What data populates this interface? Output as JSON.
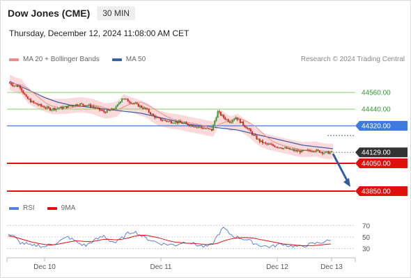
{
  "header": {
    "instrument": "Dow Jones (CME)",
    "interval": "30 MIN",
    "timestamp": "Thursday, December 12, 2024 11:08:00 AM CET"
  },
  "legend": {
    "ma20": "MA 20 + Bollinger Bands",
    "ma50": "MA 50",
    "credit": "Research © 2024 Trading Central"
  },
  "rsi_legend": {
    "rsi": "RSI",
    "ma9": "9MA"
  },
  "colors": {
    "up_candle": "#2e9c3a",
    "down_candle": "#d7221e",
    "bollinger_fill": "#fbd4d6",
    "ma20": "#f08a8a",
    "ma50": "#3b5ea8",
    "resistance": "#8fcf6a",
    "pivot": "#3d7be0",
    "support": "#e01010",
    "current": "#333333",
    "arrow": "#2f5f9e",
    "rsi": "#5a7fd6",
    "rsi_ma": "#e01010"
  },
  "chart_data": [
    {
      "type": "candlestick",
      "title": "Dow Jones (CME)",
      "x_labels": [
        "Dec 10",
        "Dec 11",
        "Dec 12",
        "Dec 13"
      ],
      "ylim": [
        43800,
        44700
      ],
      "levels": [
        {
          "value": 44560.0,
          "label": "44560.00",
          "kind": "resistance"
        },
        {
          "value": 44440.0,
          "label": "44440.00",
          "kind": "resistance"
        },
        {
          "value": 44320.0,
          "label": "44320.00",
          "kind": "pivot"
        },
        {
          "value": 44129.0,
          "label": "44129.00",
          "kind": "current"
        },
        {
          "value": 44050.0,
          "label": "44050.00",
          "kind": "support"
        },
        {
          "value": 43850.0,
          "label": "43850.00",
          "kind": "support"
        }
      ],
      "close_series": [
        44630,
        44610,
        44600,
        44520,
        44490,
        44470,
        44455,
        44440,
        44445,
        44450,
        44460,
        44470,
        44475,
        44470,
        44460,
        44440,
        44420,
        44430,
        44450,
        44520,
        44500,
        44480,
        44460,
        44440,
        44400,
        44370,
        44360,
        44350,
        44350,
        44340,
        44330,
        44320,
        44310,
        44300,
        44290,
        44420,
        44380,
        44350,
        44380,
        44340,
        44300,
        44250,
        44210,
        44190,
        44180,
        44170,
        44160,
        44150,
        44140,
        44135,
        44140,
        44145,
        44135,
        44125,
        44129
      ],
      "ma50_series": [
        44640,
        44620,
        44600,
        44580,
        44560,
        44540,
        44520,
        44505,
        44490,
        44480,
        44470,
        44465,
        44460,
        44455,
        44450,
        44445,
        44440,
        44435,
        44430,
        44425,
        44420,
        44415,
        44410,
        44400,
        44390,
        44380,
        44370,
        44360,
        44350,
        44340,
        44330,
        44325,
        44320,
        44315,
        44310,
        44305,
        44300,
        44295,
        44290,
        44280,
        44270,
        44260,
        44250,
        44240,
        44230,
        44220,
        44210,
        44200,
        44190,
        44180,
        44175,
        44170,
        44165,
        44160,
        44155
      ],
      "arrow": {
        "from": 44129,
        "to": 43850
      }
    },
    {
      "type": "line",
      "title": "RSI",
      "yticks": [
        70,
        50,
        30
      ],
      "ylim": [
        15,
        85
      ],
      "series": [
        {
          "name": "RSI",
          "values": [
            55,
            50,
            40,
            38,
            34,
            36,
            33,
            37,
            40,
            45,
            50,
            44,
            38,
            35,
            42,
            47,
            52,
            44,
            40,
            48,
            56,
            60,
            54,
            48,
            44,
            40,
            38,
            37,
            36,
            40,
            42,
            38,
            35,
            33,
            36,
            52,
            66,
            56,
            50,
            48,
            45,
            40,
            36,
            34,
            33,
            36,
            38,
            35,
            34,
            33,
            36,
            38,
            40,
            42,
            44
          ]
        },
        {
          "name": "9MA",
          "values": [
            52,
            50,
            47,
            44,
            41,
            39,
            37,
            36,
            37,
            39,
            41,
            43,
            43,
            42,
            42,
            44,
            46,
            46,
            45,
            46,
            48,
            51,
            53,
            53,
            51,
            49,
            46,
            43,
            41,
            40,
            39,
            39,
            38,
            37,
            37,
            39,
            43,
            46,
            48,
            49,
            49,
            48,
            46,
            44,
            42,
            40,
            38,
            37,
            36,
            35,
            35,
            35,
            36,
            37,
            38
          ]
        }
      ]
    }
  ]
}
